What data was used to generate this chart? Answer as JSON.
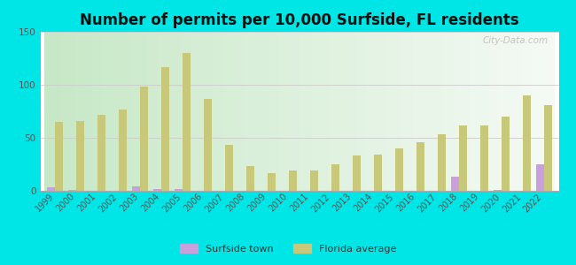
{
  "title": "Number of permits per 10,000 Surfside, FL residents",
  "years": [
    1999,
    2000,
    2001,
    2002,
    2003,
    2004,
    2005,
    2006,
    2007,
    2008,
    2009,
    2010,
    2011,
    2012,
    2013,
    2014,
    2015,
    2016,
    2017,
    2018,
    2019,
    2020,
    2021,
    2022
  ],
  "surfside": [
    3,
    1,
    0,
    0,
    4,
    2,
    2,
    0,
    0,
    0,
    0,
    0,
    0,
    0,
    0,
    0,
    0,
    0,
    0,
    13,
    0,
    1,
    0,
    25
  ],
  "florida": [
    65,
    66,
    72,
    77,
    98,
    117,
    130,
    87,
    43,
    23,
    17,
    19,
    19,
    25,
    33,
    34,
    40,
    46,
    53,
    62,
    62,
    70,
    90,
    81
  ],
  "surfside_color": "#c9a0dc",
  "florida_color": "#c8c87a",
  "bg_color": "#00e5e5",
  "ylim": [
    0,
    150
  ],
  "yticks": [
    0,
    50,
    100,
    150
  ],
  "watermark": "City-Data.com",
  "legend_surfside": "Surfside town",
  "legend_florida": "Florida average",
  "title_fontsize": 12,
  "bar_width": 0.38
}
